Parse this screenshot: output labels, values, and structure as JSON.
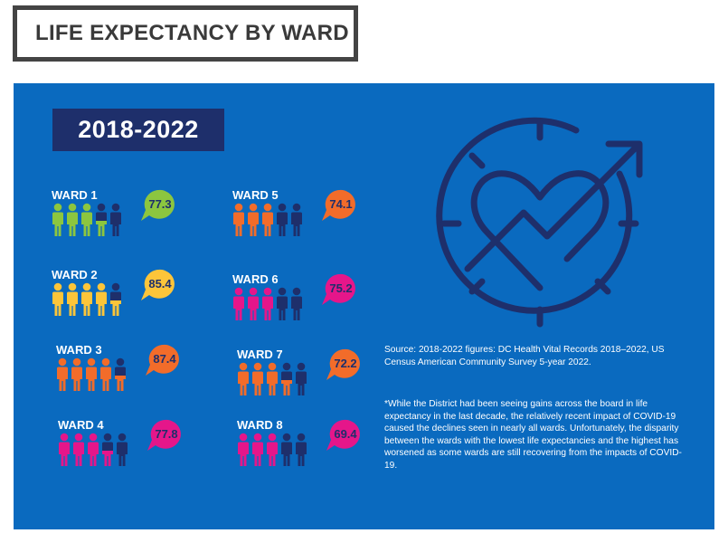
{
  "title": "LIFE EXPECTANCY BY WARD",
  "period": "2018-2022",
  "colors": {
    "panel": "#0a6abf",
    "navy": "#1e2f6b",
    "green": "#8cc63f",
    "yellow": "#fcc53a",
    "orange": "#f26c2a",
    "magenta": "#e5168a"
  },
  "wards": [
    {
      "label": "WARD 1",
      "value": "77.3",
      "color": "#8cc63f",
      "filled": 3,
      "half": true
    },
    {
      "label": "WARD 2",
      "value": "85.4",
      "color": "#fcc53a",
      "filled": 4,
      "half": true
    },
    {
      "label": "WARD 3",
      "value": "87.4",
      "color": "#f26c2a",
      "filled": 4,
      "half": true
    },
    {
      "label": "WARD 4",
      "value": "77.8",
      "color": "#e5168a",
      "filled": 3,
      "half": true
    },
    {
      "label": "WARD 5",
      "value": "74.1",
      "color": "#f26c2a",
      "filled": 3,
      "half": false
    },
    {
      "label": "WARD 6",
      "value": "75.2",
      "color": "#e5168a",
      "filled": 3,
      "half": false
    },
    {
      "label": "WARD 7",
      "value": "72.2",
      "color": "#f26c2a",
      "filled": 3,
      "half": true
    },
    {
      "label": "WARD 8",
      "value": "69.4",
      "color": "#e5168a",
      "filled": 3,
      "half": false
    }
  ],
  "source": "Source: 2018-2022 figures: DC Health Vital Records 2018–2022, US Census American Community Survey 5-year 2022.",
  "note": "*While the District had been seeing gains across the board in life expectancy in the last decade, the relatively recent impact of COVID-19 caused the declines seen in nearly all wards. Unfortunately, the disparity between the wards with the lowest life expectancies and the highest has worsened as some wards are still recovering from the impacts of COVID-19."
}
